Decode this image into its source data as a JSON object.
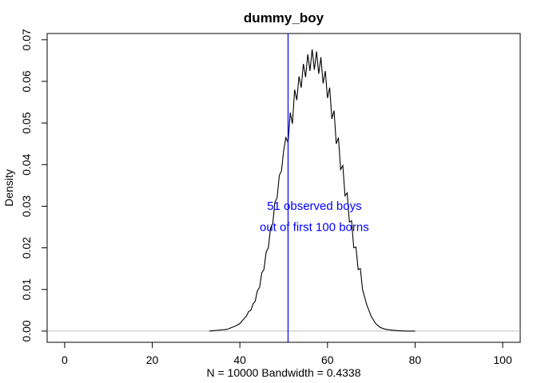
{
  "chart_data": {
    "type": "line",
    "title": "dummy_boy",
    "xlabel": "N = 10000   Bandwidth = 0.4338",
    "ylabel": "Density",
    "xlim": [
      -4,
      104
    ],
    "ylim": [
      -0.0027,
      0.0715
    ],
    "x_ticks": [
      0,
      20,
      40,
      60,
      80,
      100
    ],
    "x_tick_labels": [
      "0",
      "20",
      "40",
      "60",
      "80",
      "100"
    ],
    "y_ticks": [
      0.0,
      0.01,
      0.02,
      0.03,
      0.04,
      0.05,
      0.06,
      0.07
    ],
    "y_tick_labels": [
      "0.00",
      "0.01",
      "0.02",
      "0.03",
      "0.04",
      "0.05",
      "0.06",
      "0.07"
    ],
    "grid": false,
    "zero_line": true,
    "colors": {
      "curve": "#000000",
      "vline": "#0000ff",
      "annotation": "#0000ff",
      "zero_line": "#bebebe"
    },
    "series": [
      {
        "x": [
          33,
          35,
          37,
          38,
          39,
          40,
          40.8,
          41.5,
          42,
          42.5,
          43,
          43.5,
          44,
          44.5,
          45,
          45.5,
          46,
          46.5,
          47,
          47.5,
          48,
          48.5,
          49,
          49.5,
          50,
          50.5,
          51,
          51.5,
          52,
          52.5,
          53,
          53.5,
          54,
          54.5,
          55,
          55.5,
          56,
          56.5,
          57,
          57.5,
          58,
          58.5,
          59,
          59.5,
          60,
          60.5,
          61,
          61.5,
          62,
          62.5,
          63,
          63.5,
          64,
          64.5,
          65,
          65.5,
          66,
          66.5,
          67,
          67.5,
          68,
          69,
          70,
          71,
          72,
          73,
          74,
          76,
          78,
          80
        ],
        "y": [
          0.0,
          0.0002,
          0.0004,
          0.0008,
          0.0012,
          0.0018,
          0.0028,
          0.0036,
          0.0047,
          0.005,
          0.0065,
          0.0072,
          0.0097,
          0.0105,
          0.014,
          0.0148,
          0.019,
          0.02,
          0.0248,
          0.0258,
          0.031,
          0.032,
          0.0374,
          0.0385,
          0.0434,
          0.0465,
          0.0453,
          0.0525,
          0.0498,
          0.058,
          0.0555,
          0.0612,
          0.0585,
          0.0642,
          0.061,
          0.0665,
          0.0625,
          0.0677,
          0.0628,
          0.0672,
          0.0618,
          0.0658,
          0.0595,
          0.0625,
          0.056,
          0.0585,
          0.051,
          0.053,
          0.045,
          0.0465,
          0.0388,
          0.0398,
          0.0325,
          0.0332,
          0.0262,
          0.0265,
          0.02,
          0.0202,
          0.0148,
          0.015,
          0.01,
          0.0062,
          0.0035,
          0.0018,
          0.0009,
          0.0005,
          0.0003,
          0.0001,
          0.0,
          0.0
        ]
      }
    ],
    "vline": {
      "x": 51
    },
    "annotation": {
      "lines": [
        "51 observed boys",
        "out of first 100 borns"
      ],
      "x": 57,
      "y": [
        0.0299,
        0.0248
      ]
    }
  }
}
